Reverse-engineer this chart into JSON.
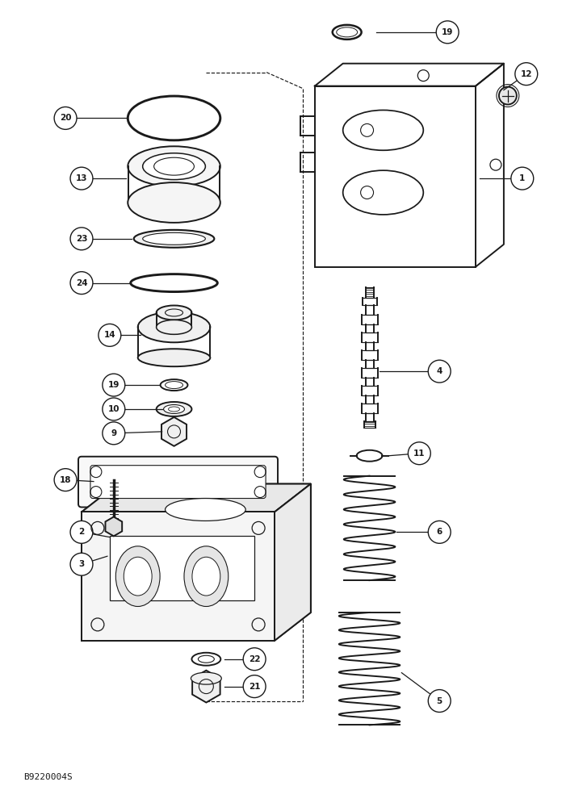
{
  "title": "B9220004S",
  "bg_color": "#ffffff",
  "line_color": "#1a1a1a",
  "fig_width": 6.96,
  "fig_height": 10.0
}
